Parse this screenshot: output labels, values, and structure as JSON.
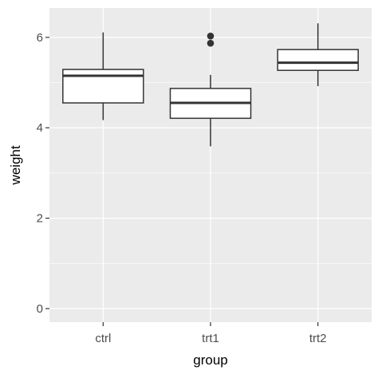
{
  "chart_data": {
    "type": "boxplot",
    "xlabel": "group",
    "ylabel": "weight",
    "categories": [
      "ctrl",
      "trt1",
      "trt2"
    ],
    "ylim": [
      -0.3,
      6.65
    ],
    "yticks": [
      0,
      2,
      4,
      6
    ],
    "ytick_labels": [
      "0",
      "2",
      "4",
      "6"
    ],
    "grid": true,
    "boxes": [
      {
        "category": "ctrl",
        "whisker_low": 4.17,
        "q1": 4.55,
        "median": 5.15,
        "q3": 5.29,
        "whisker_high": 6.11,
        "outliers": []
      },
      {
        "category": "trt1",
        "whisker_low": 3.59,
        "q1": 4.21,
        "median": 4.55,
        "q3": 4.87,
        "whisker_high": 5.17,
        "outliers": [
          6.03,
          5.87
        ]
      },
      {
        "category": "trt2",
        "whisker_low": 4.92,
        "q1": 5.27,
        "median": 5.44,
        "q3": 5.73,
        "whisker_high": 6.31,
        "outliers": []
      }
    ],
    "colors": {
      "panel_background": "#ebebeb",
      "grid_major": "#ffffff",
      "box_fill": "#ffffff",
      "box_stroke": "#333333",
      "tick_label": "#4d4d4d",
      "axis_title": "#000000"
    }
  }
}
